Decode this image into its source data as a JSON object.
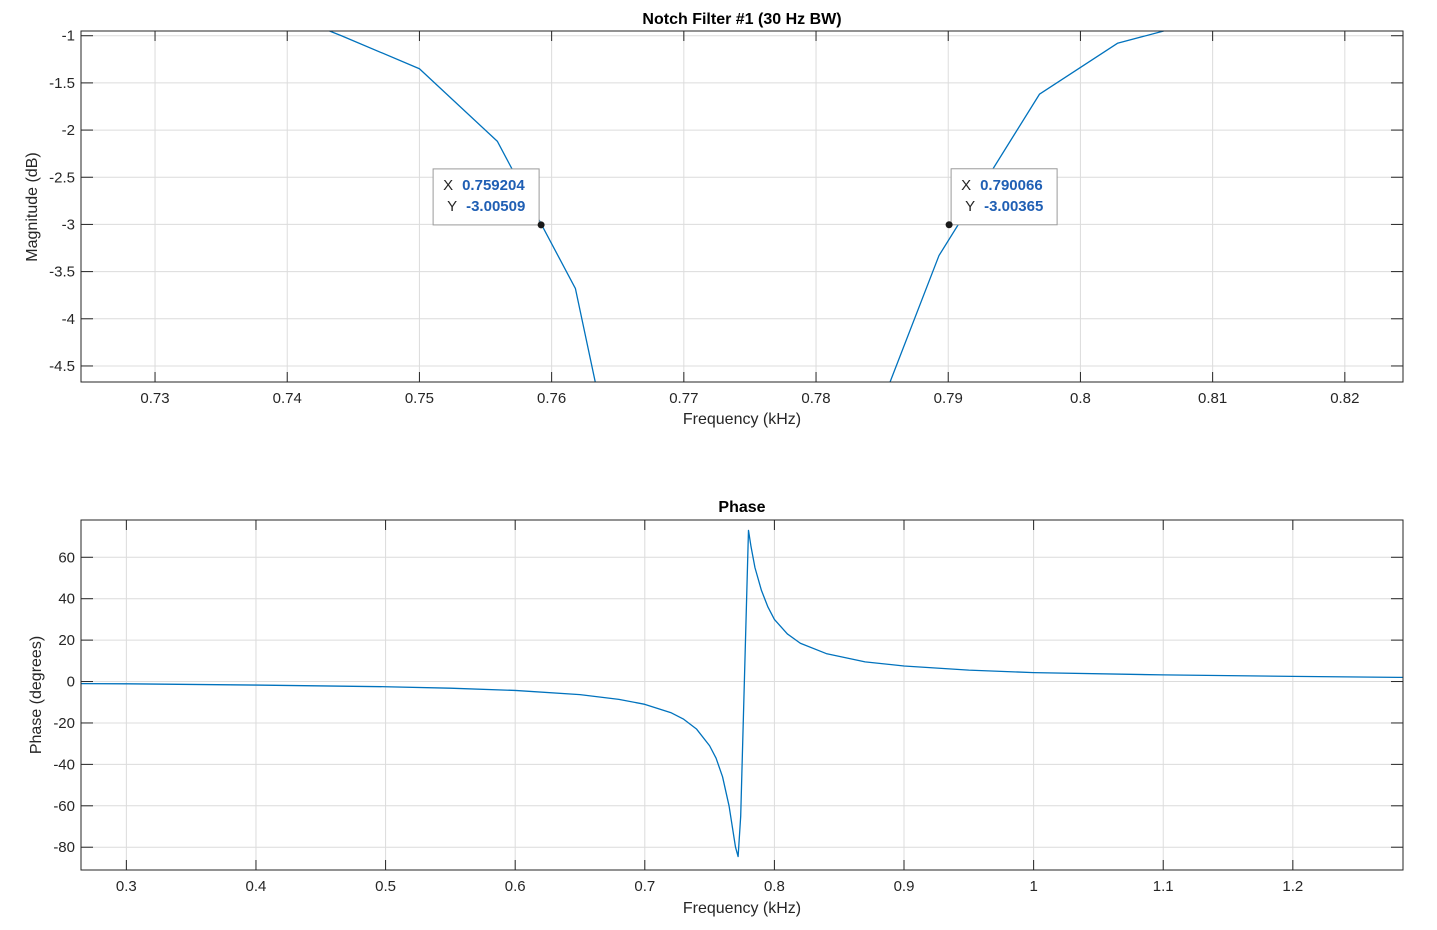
{
  "chart_data": [
    {
      "type": "line",
      "title": "Notch Filter #1 (30 Hz BW)",
      "xlabel": "Frequency (kHz)",
      "ylabel": "Magnitude (dB)",
      "xlim": [
        0.7244,
        0.8244
      ],
      "ylim": [
        -4.67,
        -0.95
      ],
      "xticks": [
        0.73,
        0.74,
        0.75,
        0.76,
        0.77,
        0.78,
        0.79,
        0.8,
        0.81,
        0.82
      ],
      "xtick_labels": [
        "0.73",
        "0.74",
        "0.75",
        "0.76",
        "0.77",
        "0.78",
        "0.79",
        "0.8",
        "0.81",
        "0.82"
      ],
      "yticks": [
        -1,
        -1.5,
        -2,
        -2.5,
        -3,
        -3.5,
        -4,
        -4.5
      ],
      "ytick_labels": [
        "-1",
        "-1.5",
        "-2",
        "-2.5",
        "-3",
        "-3.5",
        "-4",
        "-4.5"
      ],
      "grid": true,
      "line_color": "#0072bd",
      "series": [
        {
          "segments": [
            {
              "x": [
                0.7432,
                0.7441,
                0.75,
                0.7559,
                0.7618,
                0.7633
              ],
              "y": [
                -0.95,
                -1.0,
                -1.35,
                -2.12,
                -3.68,
                -4.67
              ]
            },
            {
              "x": [
                0.7856,
                0.7893,
                0.7969,
                0.8028,
                0.8063
              ],
              "y": [
                -4.67,
                -3.33,
                -1.62,
                -1.08,
                -0.95
              ]
            }
          ]
        }
      ],
      "datatips": [
        {
          "x_label": "X",
          "y_label": "Y",
          "x": 0.759204,
          "y": -3.00509,
          "x_text": "0.759204",
          "y_text": "-3.00509",
          "placement": "upper-left"
        },
        {
          "x_label": "X",
          "y_label": "Y",
          "x": 0.790066,
          "y": -3.00365,
          "x_text": "0.790066",
          "y_text": "-3.00365",
          "placement": "upper-right"
        }
      ]
    },
    {
      "type": "line",
      "title": "Phase",
      "xlabel": "Frequency (kHz)",
      "ylabel": "Phase (degrees)",
      "xlim": [
        0.265,
        1.285
      ],
      "ylim": [
        -91,
        78
      ],
      "xticks": [
        0.3,
        0.4,
        0.5,
        0.6,
        0.7,
        0.8,
        0.9,
        1,
        1.1,
        1.2
      ],
      "xtick_labels": [
        "0.3",
        "0.4",
        "0.5",
        "0.6",
        "0.7",
        "0.8",
        "0.9",
        "1",
        "1.1",
        "1.2"
      ],
      "yticks": [
        60,
        40,
        20,
        0,
        -20,
        -40,
        -60,
        -80
      ],
      "ytick_labels": [
        "60",
        "40",
        "20",
        "0",
        "-20",
        "-40",
        "-60",
        "-80"
      ],
      "grid": true,
      "line_color": "#0072bd",
      "series": [
        {
          "segments": [
            {
              "x": [
                0.265,
                0.3,
                0.4,
                0.5,
                0.55,
                0.6,
                0.65,
                0.68,
                0.7,
                0.72,
                0.73,
                0.74,
                0.75,
                0.755,
                0.76,
                0.765,
                0.77,
                0.772,
                0.774,
                0.78,
                0.782,
                0.785,
                0.79,
                0.795,
                0.8,
                0.81,
                0.82,
                0.84,
                0.87,
                0.9,
                0.95,
                1.0,
                1.1,
                1.2,
                1.285
              ],
              "y": [
                -1.0,
                -1.1,
                -1.7,
                -2.5,
                -3.2,
                -4.3,
                -6.3,
                -8.6,
                -11.0,
                -15.0,
                -18.2,
                -23.0,
                -31.0,
                -37.0,
                -46.0,
                -60.0,
                -80.0,
                -84.5,
                -65.0,
                73.0,
                65.0,
                55.0,
                44.0,
                36.0,
                30.0,
                23.0,
                18.5,
                13.5,
                9.5,
                7.5,
                5.5,
                4.3,
                3.2,
                2.5,
                2.0
              ]
            }
          ]
        }
      ]
    }
  ]
}
